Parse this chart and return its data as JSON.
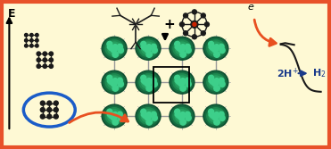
{
  "background_color": "#fef9d4",
  "border_color": "#e8522a",
  "border_width": 3,
  "fig_width": 3.71,
  "fig_height": 1.67,
  "dpi": 100
}
